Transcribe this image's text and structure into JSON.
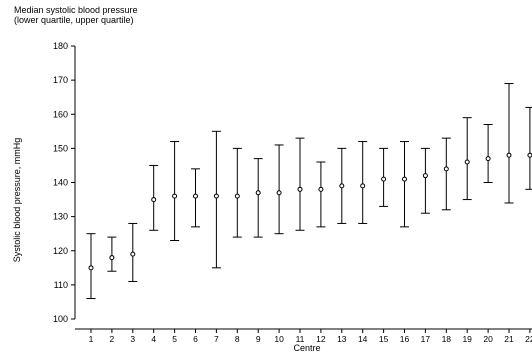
{
  "chart_data": {
    "type": "scatter",
    "title": "Median systolic blood pressure",
    "subtitle": "(lower quartile, upper quartile)",
    "xlabel": "Centre",
    "ylabel": "Systolic blood pressure, mmHg",
    "ylim": [
      100,
      180
    ],
    "yticks": [
      100,
      110,
      120,
      130,
      140,
      150,
      160,
      170,
      180
    ],
    "categories": [
      "1",
      "2",
      "3",
      "4",
      "5",
      "6",
      "7",
      "8",
      "9",
      "10",
      "11",
      "12",
      "13",
      "14",
      "15",
      "16",
      "17",
      "18",
      "19",
      "20",
      "21",
      "22"
    ],
    "grid": false,
    "series": [
      {
        "median": [
          115,
          118,
          119,
          135,
          136,
          136,
          136,
          136,
          137,
          137,
          138,
          138,
          139,
          139,
          141,
          141,
          142,
          144,
          146,
          147,
          148,
          148
        ],
        "lower_quartile": [
          106,
          114,
          111,
          126,
          123,
          127,
          115,
          124,
          124,
          125,
          126,
          127,
          128,
          128,
          133,
          127,
          131,
          132,
          135,
          140,
          134,
          138
        ],
        "upper_quartile": [
          125,
          124,
          128,
          145,
          152,
          144,
          155,
          150,
          147,
          151,
          153,
          146,
          150,
          152,
          150,
          152,
          150,
          153,
          159,
          157,
          169,
          162
        ]
      }
    ]
  }
}
